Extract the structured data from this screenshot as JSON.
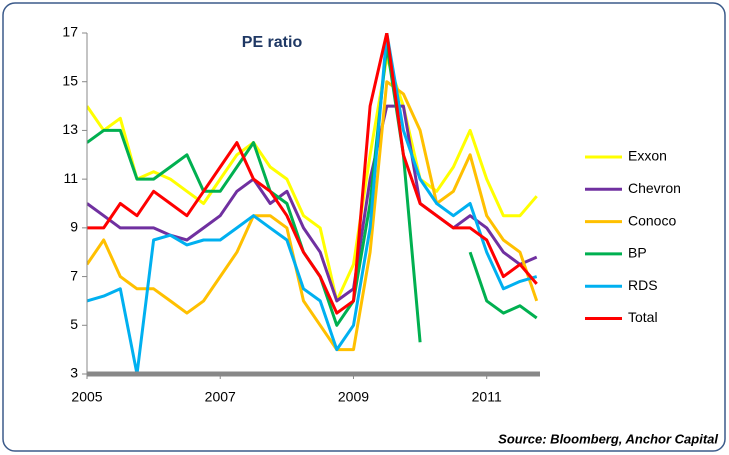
{
  "chart_data": {
    "type": "line",
    "title": "PE ratio",
    "annotations": [
      "Source: Bloomberg, Anchor Capital"
    ],
    "x": [
      2005,
      2005.25,
      2005.5,
      2005.75,
      2006,
      2006.25,
      2006.5,
      2006.75,
      2007,
      2007.25,
      2007.5,
      2007.75,
      2008,
      2008.25,
      2008.5,
      2008.75,
      2009,
      2009.25,
      2009.5,
      2009.75,
      2010,
      2010.25,
      2010.5,
      2010.75,
      2011,
      2011.25,
      2011.5,
      2011.75
    ],
    "series": [
      {
        "name": "Exxon",
        "color": "#ffff00",
        "values": [
          14,
          13,
          13.5,
          11,
          11.3,
          11,
          10.5,
          10,
          11,
          12,
          12.5,
          11.5,
          11,
          9.5,
          9,
          6,
          7.5,
          12,
          16,
          14,
          11,
          10.5,
          11.5,
          13,
          11,
          9.5,
          9.5,
          10.3
        ]
      },
      {
        "name": "Chevron",
        "color": "#7030a0",
        "values": [
          10,
          9.5,
          9,
          9,
          9,
          8.7,
          8.5,
          9,
          9.5,
          10.5,
          11,
          10,
          10.5,
          9,
          8,
          6,
          6.5,
          11,
          14,
          14,
          10,
          9.5,
          9,
          9.5,
          9,
          8,
          7.5,
          7.8
        ]
      },
      {
        "name": "Conoco",
        "color": "#ffc000",
        "values": [
          7.5,
          8.5,
          7,
          6.5,
          6.5,
          6,
          5.5,
          6,
          7,
          8,
          9.5,
          9.5,
          9,
          6,
          5,
          4,
          4,
          8,
          15,
          14.5,
          13,
          10,
          10.5,
          12,
          9.5,
          8.5,
          8,
          6
        ]
      },
      {
        "name": "BP",
        "color": "#00b050",
        "values": [
          12.5,
          13,
          13,
          11,
          11,
          11.5,
          12,
          10.5,
          10.5,
          11.5,
          12.5,
          10.5,
          10,
          8,
          7,
          5,
          6,
          10,
          16.5,
          12,
          4.3,
          null,
          null,
          8,
          6,
          5.5,
          5.8,
          5.3
        ]
      },
      {
        "name": "RDS",
        "color": "#00b0f0",
        "values": [
          6,
          6.2,
          6.5,
          3,
          8.5,
          8.7,
          8.3,
          8.5,
          8.5,
          9,
          9.5,
          9,
          8.5,
          6.5,
          6,
          4,
          5,
          9,
          17,
          13,
          11,
          10,
          9.5,
          10,
          8,
          6.5,
          6.8,
          7
        ]
      },
      {
        "name": "Total",
        "color": "#ff0000",
        "values": [
          9,
          9,
          10,
          9.5,
          10.5,
          10,
          9.5,
          10.5,
          11.5,
          12.5,
          11,
          10.5,
          9.5,
          8,
          7,
          5.5,
          6,
          14,
          17,
          12,
          10,
          9.5,
          9,
          9,
          8.5,
          7,
          7.5,
          6.7
        ]
      }
    ],
    "xlim": [
      2005,
      2011.8
    ],
    "xticks": [
      2005,
      2007,
      2009,
      2011
    ],
    "ylim": [
      3,
      17
    ],
    "yticks": [
      3,
      5,
      7,
      9,
      11,
      13,
      15,
      17
    ],
    "grid": false,
    "legend": "right"
  }
}
